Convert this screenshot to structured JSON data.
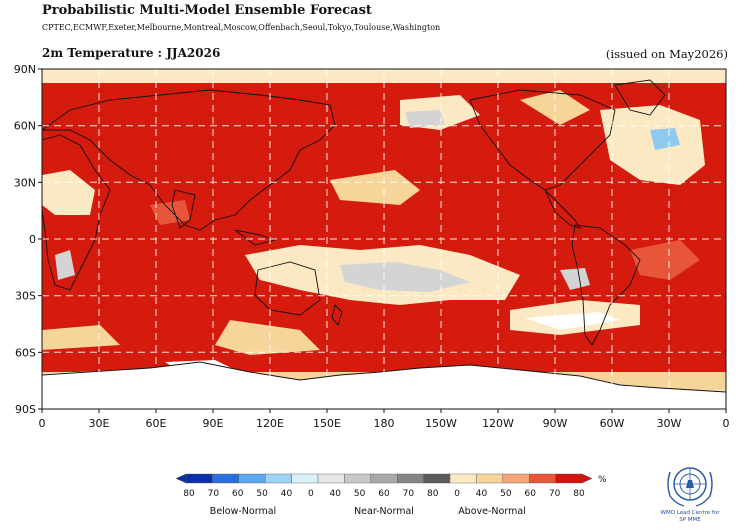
{
  "header": {
    "title": "Probabilistic Multi-Model Ensemble Forecast",
    "subtitle": "CPTEC,ECMWF,Exeter,Melbourne,Montreal,Moscow,Offenbach,Seoul,Tokyo,Toulouse,Washington",
    "map_label": "2m Temperature : JJA2026",
    "issued": "(issued on May2026)"
  },
  "map": {
    "projection": "equirectangular, 0-360 centered on Pacific",
    "lat_ticks": [
      "90N",
      "60N",
      "30N",
      "0",
      "30S",
      "60S",
      "90S"
    ],
    "lon_ticks": [
      "0",
      "30E",
      "60E",
      "90E",
      "120E",
      "150E",
      "180",
      "150W",
      "120W",
      "90W",
      "60W",
      "30W",
      "0"
    ],
    "gridlines": "dashed white",
    "dominant_category": "Above-Normal",
    "regions": [
      {
        "name": "tropics and most oceans",
        "category": "Above-Normal",
        "probability": "70-80%"
      },
      {
        "name": "central South Pacific",
        "category": "Near-Normal",
        "probability": "40-50%"
      },
      {
        "name": "Antarctica",
        "category": "no signal",
        "probability": ""
      },
      {
        "name": "North Atlantic subpolar",
        "category": "Below-Normal",
        "probability": "40-50%"
      }
    ]
  },
  "legend": {
    "below_levels": [
      "80",
      "70",
      "60",
      "50",
      "40"
    ],
    "near_levels": [
      "0",
      "40",
      "50",
      "60",
      "70",
      "80"
    ],
    "above_levels": [
      "0",
      "40",
      "50",
      "60",
      "70",
      "80"
    ],
    "unit": "%",
    "categories": [
      "Below-Normal",
      "Near-Normal",
      "Above-Normal"
    ],
    "colors": {
      "below": [
        "#0b2fa8",
        "#2a6fe0",
        "#5fa7ef",
        "#9fd3f5",
        "#d9f2f8"
      ],
      "near": [
        "#ffffff",
        "#e6e6e6",
        "#c9c9c9",
        "#a8a8a8",
        "#858585",
        "#5c5c5c"
      ],
      "above": [
        "#ffffff",
        "#fbe9c4",
        "#f7d49a",
        "#f4a67a",
        "#e8563a",
        "#d3120f"
      ]
    }
  },
  "logo": {
    "name": "WMO Lead Centre for SP MME",
    "icon": "un-wreath-globe-icon",
    "lines": [
      "WMO Lead Centre for",
      "SP MME"
    ]
  },
  "colors": {
    "above_strong": "#d51a0e",
    "above_mid": "#e8563a",
    "above_light": "#f7d49a",
    "above_pale": "#fbe9c4",
    "near_normal": "#d4d4d4",
    "below_light": "#8ec9ef"
  }
}
